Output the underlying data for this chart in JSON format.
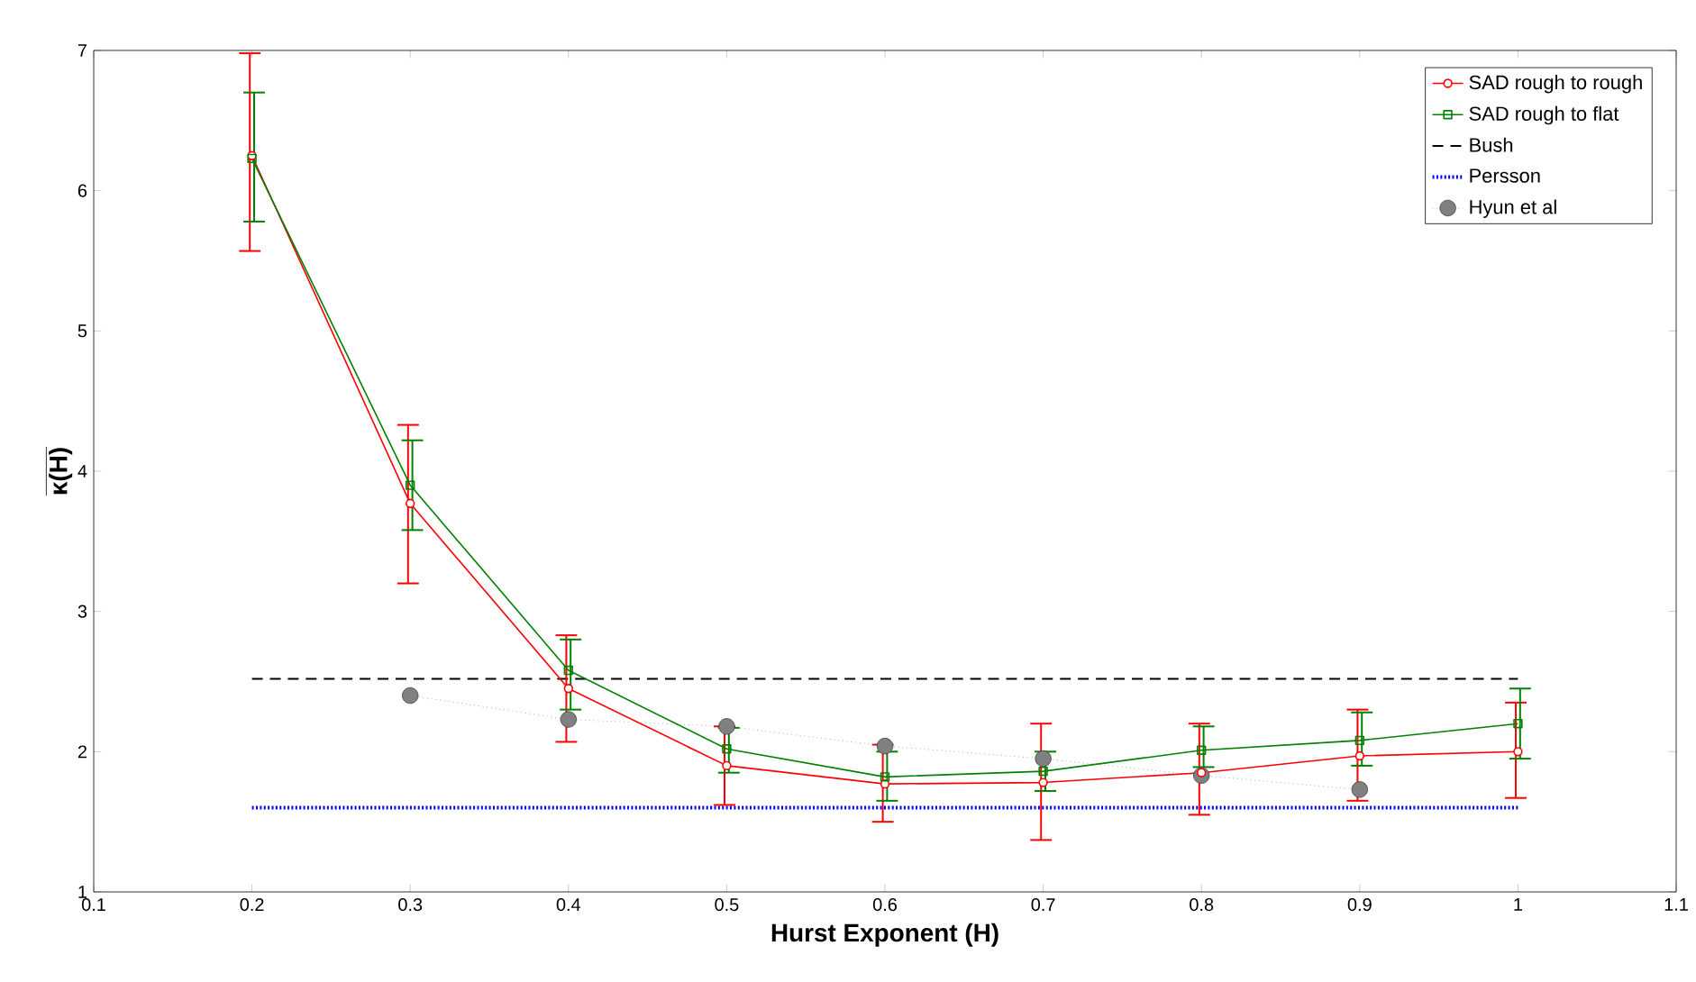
{
  "chart_data": {
    "type": "line",
    "xlabel": "Hurst Exponent (H)",
    "ylabel": "κ(H)",
    "xlim": [
      0.1,
      1.1
    ],
    "ylim": [
      1,
      7
    ],
    "xticks": [
      0.1,
      0.2,
      0.3,
      0.4,
      0.5,
      0.6,
      0.7,
      0.8,
      0.9,
      1,
      1.1
    ],
    "yticks": [
      1,
      2,
      3,
      4,
      5,
      6,
      7
    ],
    "legend": "top right",
    "grid": false,
    "series": [
      {
        "name": "SAD rough to rough",
        "color": "#ff0000",
        "marker": "circle",
        "line_style": "solid",
        "x": [
          0.2,
          0.3,
          0.4,
          0.5,
          0.6,
          0.7,
          0.8,
          0.9,
          1.0
        ],
        "values": [
          6.25,
          3.77,
          2.45,
          1.9,
          1.77,
          1.78,
          1.85,
          1.97,
          2.0
        ],
        "errors": [
          [
            5.57,
            6.98
          ],
          [
            3.2,
            4.33
          ],
          [
            2.07,
            2.83
          ],
          [
            1.62,
            2.18
          ],
          [
            1.5,
            2.05
          ],
          [
            1.37,
            2.2
          ],
          [
            1.55,
            2.2
          ],
          [
            1.65,
            2.3
          ],
          [
            1.67,
            2.35
          ]
        ]
      },
      {
        "name": "SAD rough to flat",
        "color": "#008000",
        "marker": "square",
        "line_style": "solid",
        "x": [
          0.2,
          0.3,
          0.4,
          0.5,
          0.6,
          0.7,
          0.8,
          0.9,
          1.0
        ],
        "values": [
          6.23,
          3.9,
          2.58,
          2.02,
          1.82,
          1.86,
          2.01,
          2.08,
          2.2
        ],
        "errors": [
          [
            5.78,
            6.7
          ],
          [
            3.58,
            4.22
          ],
          [
            2.3,
            2.8
          ],
          [
            1.85,
            2.17
          ],
          [
            1.65,
            2.0
          ],
          [
            1.72,
            2.0
          ],
          [
            1.89,
            2.18
          ],
          [
            1.9,
            2.28
          ],
          [
            1.95,
            2.45
          ]
        ]
      },
      {
        "name": "Bush",
        "color": "#000000",
        "marker": "none",
        "line_style": "dashed",
        "x": [
          0.2,
          1.0
        ],
        "values": [
          2.52,
          2.52
        ]
      },
      {
        "name": "Persson",
        "color": "#0000ff",
        "marker": "none",
        "line_style": "dotted",
        "x": [
          0.2,
          1.0
        ],
        "values": [
          1.6,
          1.6
        ]
      },
      {
        "name": "Hyun et al",
        "color": "#808080",
        "marker": "circle",
        "line_style": "dotted",
        "x": [
          0.3,
          0.4,
          0.5,
          0.6,
          0.7,
          0.8,
          0.9
        ],
        "values": [
          2.4,
          2.23,
          2.18,
          2.04,
          1.95,
          1.83,
          1.73
        ]
      }
    ]
  }
}
